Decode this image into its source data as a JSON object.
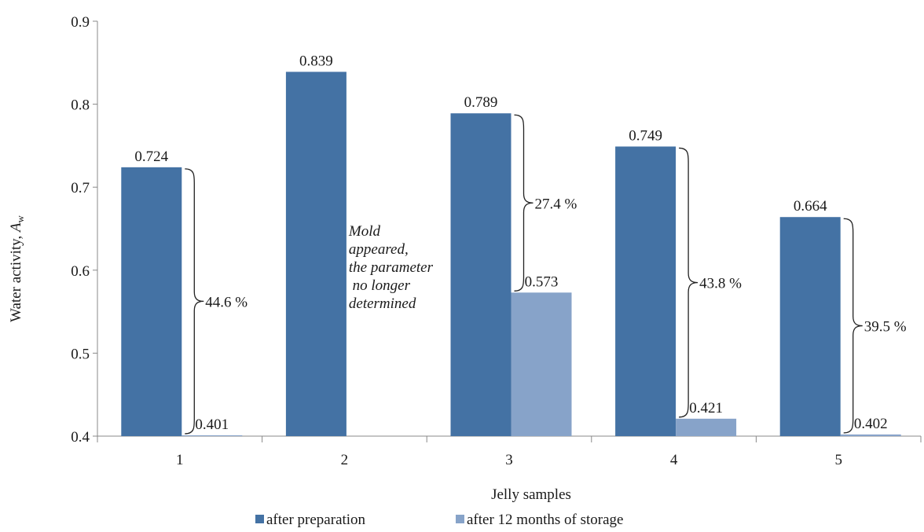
{
  "chart_data": {
    "type": "bar",
    "categories": [
      "1",
      "2",
      "3",
      "4",
      "5"
    ],
    "series": [
      {
        "name": "after preparation",
        "color": "#4472a4",
        "values": [
          0.724,
          0.839,
          0.789,
          0.749,
          0.664
        ]
      },
      {
        "name": "after 12 months of storage",
        "color": "#87a3c9",
        "values": [
          0.401,
          null,
          0.573,
          0.421,
          0.402
        ]
      }
    ],
    "data_labels": [
      [
        "0.724",
        "0.839",
        "0.789",
        "0.749",
        "0.664"
      ],
      [
        "0.401",
        null,
        "0.573",
        "0.421",
        "0.402"
      ]
    ],
    "title": "",
    "xlabel": "Jelly samples",
    "ylabel": "Water activity, ",
    "ylabel_italic": "A",
    "ylabel_sub": "w",
    "ylim": [
      0.4,
      0.9
    ],
    "yticks": [
      "0.4",
      "0.5",
      "0.6",
      "0.7",
      "0.8",
      "0.9"
    ],
    "grid": false,
    "legend_position": "bottom",
    "annotations": {
      "percent_changes": [
        {
          "category": "1",
          "text": "44.6 %"
        },
        {
          "category": "3",
          "text": "27.4 %"
        },
        {
          "category": "4",
          "text": "43.8 %"
        },
        {
          "category": "5",
          "text": "39.5 %"
        }
      ],
      "note": {
        "category": "2",
        "lines": [
          "Mold",
          "appeared,",
          "the parameter",
          " no longer",
          "determined"
        ]
      }
    }
  }
}
